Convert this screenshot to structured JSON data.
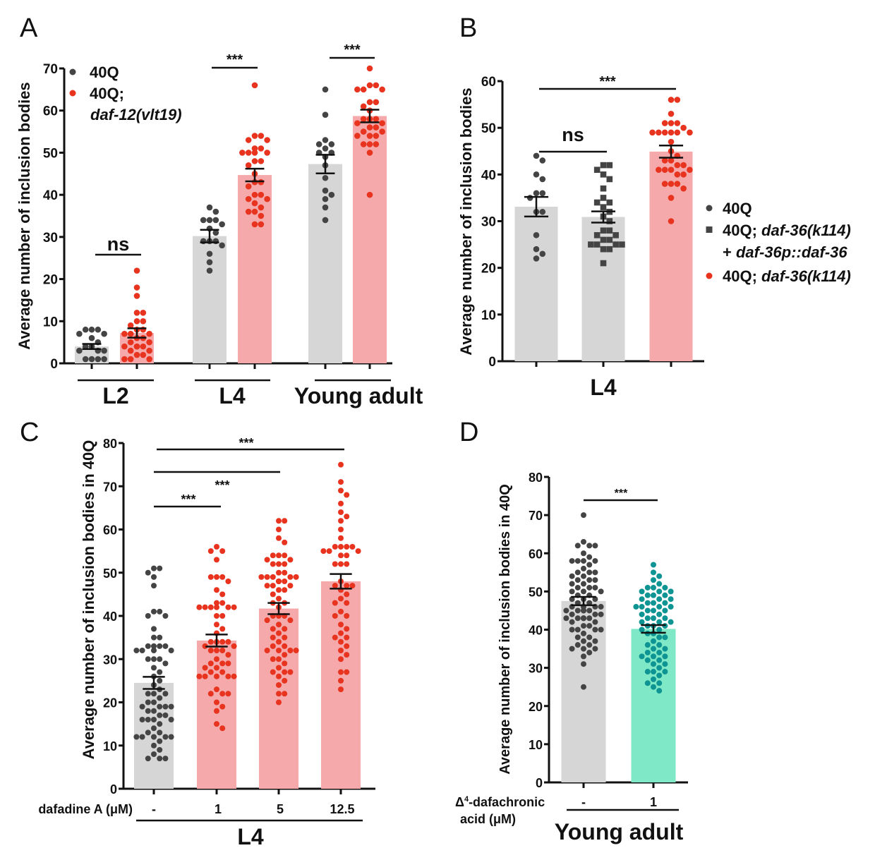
{
  "colors": {
    "gray_bar": "#d6d6d6",
    "gray_dot": "#444444",
    "red_bar": "#f5a9ab",
    "red_dot": "#e8331f",
    "teal_bar": "#7fe8c6",
    "teal_dot": "#0e9493"
  },
  "chart_data": [
    {
      "panel": "A",
      "type": "bar",
      "ylabel": "Average number of inclusion bodies",
      "ylim": [
        0,
        70
      ],
      "yticks": [
        0,
        10,
        20,
        30,
        40,
        50,
        60,
        70
      ],
      "legend": {
        "placement": "top-left",
        "entries": [
          {
            "label": "40Q",
            "marker": "circle",
            "color": "#444444"
          },
          {
            "label": "40Q;",
            "label2": "daf-12(vlt19)",
            "marker": "circle",
            "color": "#e8331f"
          }
        ]
      },
      "groups": [
        {
          "label": "L2"
        },
        {
          "label": "L4"
        },
        {
          "label": "Young adult"
        }
      ],
      "bars": [
        {
          "group": 0,
          "series": "40Q",
          "mean": 4.0,
          "sem": 0.6,
          "bar": "gray",
          "points": [
            8,
            8,
            7,
            7,
            8,
            6,
            5,
            3,
            3,
            4,
            3,
            1,
            1,
            1,
            1,
            4
          ]
        },
        {
          "group": 0,
          "series": "40Q; daf-12(vlt19)",
          "mean": 7.2,
          "sem": 1.1,
          "bar": "red",
          "points": [
            22,
            18,
            16,
            12,
            12,
            10,
            10,
            9,
            8,
            8,
            7,
            7,
            6,
            6,
            5,
            5,
            4,
            4,
            4,
            4,
            4,
            3,
            3,
            2,
            2,
            1,
            1,
            1,
            7
          ]
        },
        {
          "group": 1,
          "series": "40Q",
          "mean": 30.2,
          "sem": 1.5,
          "bar": "gray",
          "points": [
            37,
            36,
            34,
            34,
            33,
            34,
            32,
            31,
            29,
            29,
            29,
            28,
            26,
            24,
            22
          ]
        },
        {
          "group": 1,
          "series": "40Q; daf-12(vlt19)",
          "mean": 44.7,
          "sem": 1.5,
          "bar": "red",
          "points": [
            66,
            54,
            54,
            53,
            53,
            51,
            51,
            50,
            50,
            50,
            50,
            48,
            48,
            47,
            45,
            43,
            43,
            42,
            40,
            40,
            39,
            39,
            38,
            37,
            36,
            35,
            36,
            33,
            33
          ]
        },
        {
          "group": 2,
          "series": "40Q",
          "mean": 47.3,
          "sem": 2.2,
          "bar": "gray",
          "points": [
            65,
            59,
            53,
            52,
            52,
            51,
            50,
            50,
            49,
            47,
            44,
            41,
            40,
            39,
            37,
            34
          ]
        },
        {
          "group": 2,
          "series": "40Q; daf-12(vlt19)",
          "mean": 58.7,
          "sem": 1.5,
          "bar": "red",
          "points": [
            70,
            66,
            66,
            65,
            65,
            65,
            62,
            62,
            61,
            60,
            58,
            58,
            57,
            57,
            56,
            56,
            55,
            55,
            54,
            54,
            54,
            52,
            52,
            52,
            50,
            40,
            58
          ]
        }
      ],
      "significance": [
        {
          "label": "ns",
          "group": 0
        },
        {
          "label": "***",
          "group": 1
        },
        {
          "label": "***",
          "group": 2
        }
      ]
    },
    {
      "panel": "B",
      "type": "bar",
      "ylabel": "Average number of inclusion bodies",
      "ylim": [
        0,
        60
      ],
      "yticks": [
        0,
        10,
        20,
        30,
        40,
        50,
        60
      ],
      "xgroup_label": "L4",
      "legend": {
        "placement": "right",
        "entries": [
          {
            "label": "40Q",
            "marker": "circle",
            "color": "#444444"
          },
          {
            "label": "40Q; daf-36(k114)",
            "label2": "+ daf-36p::daf-36",
            "marker": "square",
            "color": "#444444"
          },
          {
            "label": "40Q; daf-36(k114)",
            "marker": "circle",
            "color": "#e8331f"
          }
        ]
      },
      "bars": [
        {
          "series": "40Q",
          "mean": 33.1,
          "sem": 2.1,
          "bar": "gray",
          "marker": "circle",
          "points": [
            44,
            43,
            40,
            39,
            36,
            36,
            35,
            32,
            32,
            27,
            24,
            23,
            22
          ]
        },
        {
          "series": "40Q; daf-36(k114) + daf-36p::daf-36",
          "mean": 30.9,
          "sem": 1.2,
          "bar": "gray",
          "marker": "square",
          "points": [
            42,
            42,
            41,
            40,
            39,
            37,
            35,
            34,
            34,
            33,
            32,
            31,
            30,
            28,
            28,
            27,
            27,
            26,
            26,
            25,
            25,
            25,
            25,
            24,
            24,
            21
          ]
        },
        {
          "series": "40Q; daf-36(k114)",
          "mean": 44.9,
          "sem": 1.3,
          "bar": "red",
          "marker": "circle",
          "points": [
            56,
            56,
            53,
            51,
            51,
            51,
            50,
            49,
            49,
            49,
            49,
            49,
            49,
            47,
            45,
            44,
            43,
            43,
            42,
            42,
            41,
            41,
            41,
            41,
            40,
            40,
            38,
            38,
            38,
            37,
            35,
            30
          ]
        }
      ],
      "significance": [
        {
          "label": "ns",
          "from": 0,
          "to": 1
        },
        {
          "label": "***",
          "from": 0,
          "to": 2
        }
      ]
    },
    {
      "panel": "C",
      "type": "bar",
      "ylabel": "Average number of inclusion bodies in 40Q",
      "ylim": [
        0,
        80
      ],
      "yticks": [
        0,
        10,
        20,
        30,
        40,
        50,
        60,
        70,
        80
      ],
      "treatment_label": "dafadine A (μM)",
      "categories": [
        "-",
        "1",
        "5",
        "12.5"
      ],
      "xgroup_label": "L4",
      "bars": [
        {
          "category": "-",
          "mean": 24.5,
          "sem": 1.4,
          "bar": "gray",
          "points": [
            51,
            51,
            50,
            49,
            47,
            41,
            41,
            40,
            40,
            37,
            35,
            35,
            33,
            33,
            33,
            33,
            32,
            32,
            32,
            32,
            30,
            30,
            30,
            29,
            28,
            27,
            26,
            25,
            24,
            23,
            22,
            22,
            22,
            21,
            20,
            20,
            19,
            19,
            19,
            19,
            18,
            18,
            17,
            17,
            16,
            16,
            16,
            16,
            15,
            14,
            13,
            13,
            12,
            12,
            12,
            12,
            12,
            11,
            10,
            9,
            8,
            7,
            7,
            7
          ]
        },
        {
          "category": "1",
          "mean": 34.3,
          "sem": 1.4,
          "bar": "red",
          "points": [
            56,
            55,
            55,
            53,
            49,
            49,
            49,
            48,
            46,
            45,
            43,
            43,
            42,
            42,
            42,
            42,
            42,
            42,
            40,
            40,
            38,
            37,
            36,
            34,
            34,
            34,
            34,
            33,
            33,
            32,
            32,
            32,
            31,
            30,
            29,
            29,
            29,
            28,
            28,
            27,
            27,
            26,
            26,
            26,
            26,
            26,
            23,
            22,
            22,
            22,
            20,
            19,
            18,
            15,
            14
          ]
        },
        {
          "category": "5",
          "mean": 41.7,
          "sem": 1.3,
          "bar": "red",
          "points": [
            62,
            62,
            60,
            58,
            57,
            54,
            54,
            54,
            53,
            53,
            52,
            52,
            52,
            50,
            50,
            49,
            49,
            49,
            49,
            49,
            48,
            48,
            48,
            48,
            47,
            47,
            47,
            46,
            46,
            45,
            44,
            43,
            43,
            42,
            40,
            40,
            40,
            39,
            39,
            38,
            37,
            37,
            36,
            35,
            35,
            34,
            33,
            33,
            32,
            32,
            32,
            32,
            31,
            30,
            30,
            29,
            28,
            27,
            27,
            27,
            26,
            25,
            24,
            22,
            22,
            20
          ]
        },
        {
          "category": "12.5",
          "mean": 48.0,
          "sem": 1.7,
          "bar": "red",
          "points": [
            75,
            71,
            69,
            68,
            66,
            64,
            63,
            62,
            60,
            58,
            56,
            56,
            56,
            56,
            55,
            55,
            55,
            54,
            54,
            52,
            52,
            52,
            48,
            47,
            47,
            47,
            46,
            45,
            44,
            43,
            43,
            41,
            40,
            40,
            38,
            37,
            36,
            35,
            35,
            34,
            33,
            32,
            31,
            30,
            27,
            27,
            25,
            23
          ]
        }
      ],
      "significance": [
        {
          "label": "***",
          "from": 0,
          "to": 1
        },
        {
          "label": "***",
          "from": 0,
          "to": 2
        },
        {
          "label": "***",
          "from": 0,
          "to": 3
        }
      ]
    },
    {
      "panel": "D",
      "type": "bar",
      "ylabel": "Average number of inclusion bodies in 40Q",
      "ylim": [
        0,
        80
      ],
      "yticks": [
        0,
        10,
        20,
        30,
        40,
        50,
        60,
        70,
        80
      ],
      "treatment_label_line1": "Δ",
      "treatment_label_sup": "4",
      "treatment_label_rest": "-dafachronic",
      "treatment_label_line2": "acid (μM)",
      "categories": [
        "-",
        "1"
      ],
      "xgroup_label": "Young adult",
      "bars": [
        {
          "category": "-",
          "mean": 47.5,
          "sem": 1.1,
          "bar": "gray",
          "points": [
            70,
            63,
            62,
            62,
            62,
            60,
            59,
            58,
            58,
            58,
            58,
            57,
            56,
            55,
            55,
            55,
            54,
            54,
            53,
            53,
            53,
            52,
            52,
            51,
            51,
            51,
            50,
            50,
            50,
            49,
            49,
            48,
            48,
            48,
            47,
            47,
            46,
            46,
            46,
            46,
            45,
            45,
            45,
            45,
            45,
            44,
            44,
            44,
            43,
            43,
            43,
            43,
            43,
            43,
            42,
            42,
            41,
            41,
            40,
            40,
            40,
            40,
            39,
            38,
            38,
            37,
            37,
            36,
            36,
            35,
            35,
            35,
            34,
            33,
            31,
            25
          ]
        },
        {
          "category": "1",
          "mean": 40.2,
          "sem": 1.0,
          "bar": "teal",
          "points": [
            57,
            55,
            54,
            53,
            52,
            51,
            51,
            51,
            50,
            50,
            50,
            49,
            49,
            49,
            48,
            48,
            48,
            47,
            47,
            47,
            46,
            46,
            46,
            46,
            45,
            45,
            45,
            44,
            44,
            43,
            43,
            43,
            42,
            42,
            42,
            41,
            41,
            41,
            40,
            40,
            39,
            39,
            38,
            38,
            37,
            36,
            36,
            35,
            35,
            34,
            34,
            33,
            33,
            33,
            32,
            32,
            31,
            31,
            30,
            29,
            29,
            29,
            28,
            27,
            26,
            26,
            25,
            24
          ]
        }
      ],
      "significance": [
        {
          "label": "***",
          "from": 0,
          "to": 1
        }
      ]
    }
  ]
}
